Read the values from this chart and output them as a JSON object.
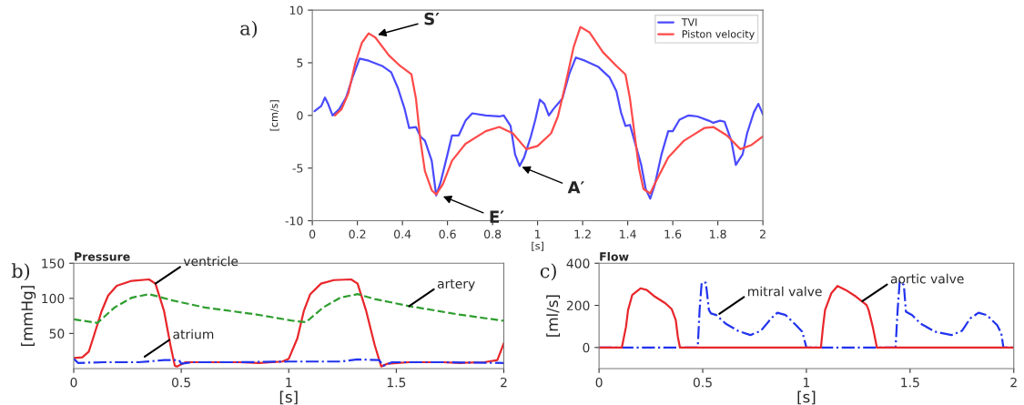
{
  "chart_data": [
    {
      "type": "line",
      "xlabel": "[s]",
      "ylabel": "[cm/s]",
      "xlim": [
        0,
        2
      ],
      "ylim": [
        -10,
        10
      ],
      "xticks": [
        0,
        0.2,
        0.4,
        0.6,
        0.8,
        1,
        1.2,
        1.4,
        1.6,
        1.8,
        2
      ],
      "yticks": [
        -10,
        -5,
        0,
        5,
        10
      ],
      "legend": "top right",
      "annotations": [
        "a)",
        {
          "text": "S′",
          "x": 0.28,
          "y": 7.6
        },
        {
          "text": "E′",
          "x": 0.57,
          "y": -7.6
        },
        {
          "text": "A′",
          "x": 0.92,
          "y": -4.8
        }
      ],
      "series": [
        {
          "name": "TVI",
          "color": "#4a4aff",
          "x": [
            0.01,
            0.04,
            0.056,
            0.07,
            0.09,
            0.12,
            0.15,
            0.18,
            0.21,
            0.25,
            0.31,
            0.35,
            0.38,
            0.41,
            0.43,
            0.46,
            0.48,
            0.5,
            0.53,
            0.55,
            0.57,
            0.6,
            0.62,
            0.65,
            0.68,
            0.71,
            0.77,
            0.83,
            0.85,
            0.88,
            0.9,
            0.92,
            0.94,
            0.97,
            0.99,
            1.01,
            1.03,
            1.05,
            1.07,
            1.11,
            1.14,
            1.17,
            1.21,
            1.27,
            1.32,
            1.35,
            1.37,
            1.39,
            1.41,
            1.43,
            1.46,
            1.48,
            1.5,
            1.52,
            1.55,
            1.58,
            1.6,
            1.63,
            1.67,
            1.71,
            1.76,
            1.78,
            1.81,
            1.83,
            1.86,
            1.88,
            1.91,
            1.93,
            1.96,
            1.98,
            2.0
          ],
          "values": [
            0.4,
            0.9,
            1.7,
            1.1,
            0,
            0.6,
            1.7,
            3.7,
            5.4,
            5.2,
            4.7,
            4.1,
            2.6,
            0.6,
            -1.2,
            -1.1,
            -2.0,
            -2.4,
            -4.3,
            -7.6,
            -6.3,
            -3.7,
            -1.9,
            -1.9,
            -0.5,
            0.2,
            0.0,
            -0.1,
            0,
            -1.0,
            -3.7,
            -4.8,
            -4.0,
            -2.0,
            -0.4,
            1.5,
            1.1,
            0,
            0.6,
            1.6,
            3.9,
            5.5,
            5.2,
            4.6,
            3.6,
            2.3,
            0.3,
            -1.0,
            -0.9,
            -2.4,
            -4.7,
            -7.0,
            -7.9,
            -6.6,
            -3.7,
            -1.5,
            -1.5,
            -0.4,
            0,
            -0.1,
            -0.5,
            -0.7,
            -0.5,
            -0.6,
            -2.4,
            -4.7,
            -3.7,
            -1.7,
            0.3,
            1.1,
            0.1
          ]
        },
        {
          "name": "Piston velocity",
          "color": "#ff4a4a",
          "x": [
            0.1,
            0.13,
            0.16,
            0.19,
            0.22,
            0.25,
            0.28,
            0.34,
            0.39,
            0.44,
            0.46,
            0.48,
            0.5,
            0.53,
            0.55,
            0.58,
            0.62,
            0.68,
            0.77,
            0.83,
            0.89,
            0.95,
            1.0,
            1.06,
            1.09,
            1.12,
            1.16,
            1.19,
            1.23,
            1.29,
            1.35,
            1.39,
            1.41,
            1.43,
            1.45,
            1.47,
            1.5,
            1.52,
            1.58,
            1.65,
            1.74,
            1.78,
            1.84,
            1.9,
            1.95,
            2.0
          ],
          "values": [
            0,
            0.6,
            2.1,
            4.9,
            6.9,
            7.8,
            7.4,
            5.7,
            4.7,
            3.9,
            1.6,
            -2.4,
            -5.3,
            -7.1,
            -7.5,
            -6.5,
            -4.3,
            -2.7,
            -1.5,
            -1.1,
            -1.7,
            -3.2,
            -2.9,
            -1.7,
            -0.1,
            2.6,
            6.5,
            8.4,
            7.9,
            6.0,
            4.7,
            3.9,
            1.6,
            -1.7,
            -5.0,
            -7.0,
            -7.4,
            -6.5,
            -4.0,
            -2.4,
            -1.2,
            -1.1,
            -1.9,
            -3.2,
            -2.8,
            -2.0
          ]
        }
      ]
    },
    {
      "type": "line",
      "title": "Pressure",
      "xlabel": "[s]",
      "ylabel": "[mmHg]",
      "xlim": [
        0,
        2
      ],
      "ylim": [
        0,
        150
      ],
      "xticks": [
        0,
        0.5,
        1,
        1.5,
        2
      ],
      "yticks": [
        50,
        100,
        150
      ],
      "annotations": [
        "b)",
        {
          "text": "ventricle",
          "x": 0.38,
          "y": 121
        },
        {
          "text": "artery",
          "x": 1.56,
          "y": 89
        },
        {
          "text": "atrium",
          "x": 0.33,
          "y": 17
        }
      ],
      "series": [
        {
          "color": "#e8262b",
          "line_style": "solid",
          "x": [
            0,
            0.04,
            0.07,
            0.09,
            0.13,
            0.16,
            0.2,
            0.27,
            0.35,
            0.38,
            0.42,
            0.45,
            0.47,
            0.48,
            0.52,
            0.61,
            0.77,
            0.86,
            0.97,
            1.0,
            1.04,
            1.07,
            1.1,
            1.15,
            1.21,
            1.29,
            1.32,
            1.36,
            1.4,
            1.43,
            1.46,
            1.56,
            1.72,
            1.8,
            1.91,
            1.97,
            2.0
          ],
          "values": [
            15,
            16,
            24,
            43,
            82,
            104,
            118,
            125,
            127,
            121,
            82,
            33,
            4,
            3,
            9,
            9,
            9,
            8,
            10,
            14,
            43,
            82,
            106,
            121,
            126,
            127,
            121,
            82,
            33,
            3,
            7,
            9,
            9,
            8,
            9,
            12,
            36
          ]
        },
        {
          "color": "#2e9e2e",
          "line_style": "dashed",
          "x": [
            0,
            0.11,
            0.19,
            0.27,
            0.35,
            0.46,
            0.61,
            0.85,
            1.02,
            1.08,
            1.16,
            1.24,
            1.32,
            1.4,
            1.56,
            1.79,
            2.0
          ],
          "values": [
            70,
            65,
            87,
            101,
            106,
            97,
            87,
            77,
            68,
            66,
            87,
            101,
            106,
            99,
            89,
            77,
            68
          ]
        },
        {
          "color": "#2233ee",
          "line_style": "dashdot",
          "x": [
            0,
            0.02,
            0.14,
            0.3,
            0.42,
            0.49,
            0.5,
            0.55,
            0.77,
            1.0,
            1.24,
            1.32,
            1.42,
            1.44,
            1.48,
            1.72,
            2.0
          ],
          "values": [
            14,
            8,
            9,
            9,
            12,
            12,
            7,
            9,
            9,
            10,
            10,
            13,
            12,
            4,
            9,
            9,
            8
          ]
        }
      ]
    },
    {
      "type": "line",
      "title": "Flow",
      "xlabel": "[s]",
      "ylabel": "[ml/s]",
      "xlim": [
        0,
        2
      ],
      "ylim": [
        -100,
        400
      ],
      "xticks": [
        0,
        0.5,
        1,
        1.5,
        2
      ],
      "yticks": [
        0,
        200,
        400
      ],
      "annotations": [
        "c)",
        {
          "text": "mitral valve",
          "x": 0.58,
          "y": 160
        },
        {
          "text": "aortic valve",
          "x": 1.27,
          "y": 220
        }
      ],
      "series": [
        {
          "color": "#2233ee",
          "line_style": "dashdot",
          "x": [
            0,
            0.476,
            0.485,
            0.495,
            0.515,
            0.53,
            0.54,
            0.565,
            0.61,
            0.67,
            0.73,
            0.78,
            0.83,
            0.86,
            0.9,
            0.95,
            0.98,
            1.0,
            1.43,
            1.44,
            1.45,
            1.47,
            1.48,
            1.51,
            1.55,
            1.62,
            1.7,
            1.75,
            1.79,
            1.83,
            1.87,
            1.92,
            1.94,
            1.95,
            2.0
          ],
          "values": [
            0,
            0,
            178,
            308,
            308,
            178,
            162,
            154,
            114,
            79,
            59,
            79,
            138,
            165,
            154,
            106,
            75,
            0,
            0,
            178,
            313,
            297,
            170,
            154,
            114,
            75,
            59,
            79,
            138,
            165,
            154,
            106,
            67,
            0,
            0
          ]
        },
        {
          "color": "#e8262b",
          "line_style": "solid",
          "x": [
            0,
            0.11,
            0.13,
            0.14,
            0.16,
            0.2,
            0.23,
            0.27,
            0.32,
            0.35,
            0.37,
            0.38,
            0.39,
            1.07,
            1.08,
            1.09,
            1.12,
            1.15,
            1.19,
            1.24,
            1.29,
            1.3,
            1.32,
            1.34,
            2.0
          ],
          "values": [
            0,
            0,
            98,
            178,
            249,
            281,
            273,
            241,
            210,
            183,
            130,
            51,
            0,
            0,
            98,
            178,
            257,
            292,
            273,
            241,
            202,
            178,
            98,
            0,
            0
          ]
        }
      ]
    }
  ]
}
